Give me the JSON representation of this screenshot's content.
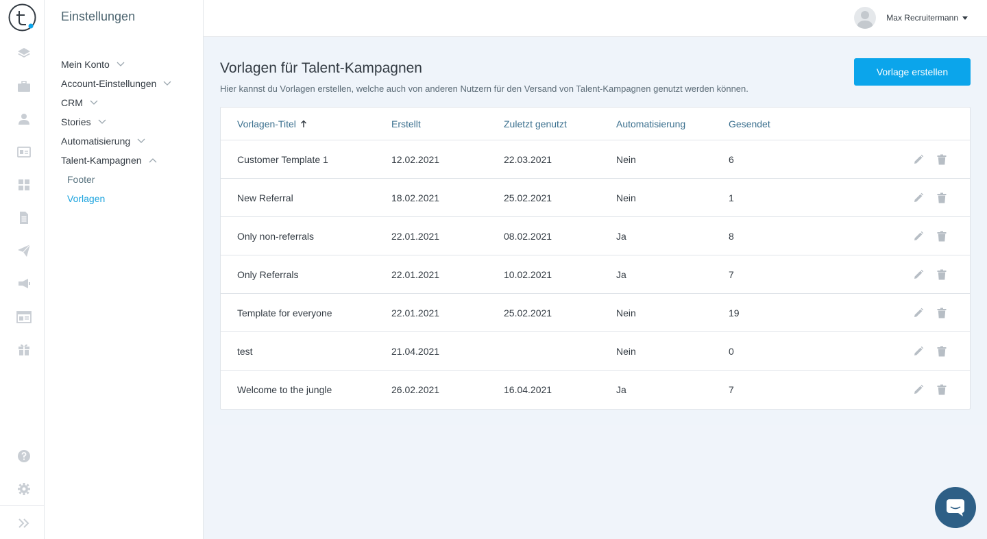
{
  "rail": {
    "icons": [
      "logo-icon",
      "layers-icon",
      "briefcase-icon",
      "person-icon",
      "id-card-icon",
      "grid-icon",
      "document-icon",
      "paper-plane-icon",
      "megaphone-icon",
      "layout-icon",
      "gift-icon",
      "help-icon",
      "gear-icon",
      "expand-icon"
    ]
  },
  "settings": {
    "title": "Einstellungen",
    "menu": [
      {
        "label": "Mein Konto",
        "expanded": false
      },
      {
        "label": "Account-Einstellungen",
        "expanded": false
      },
      {
        "label": "CRM",
        "expanded": false
      },
      {
        "label": "Stories",
        "expanded": false
      },
      {
        "label": "Automatisierung",
        "expanded": false
      },
      {
        "label": "Talent-Kampagnen",
        "expanded": true
      }
    ],
    "submenu": [
      {
        "label": "Footer",
        "active": false
      },
      {
        "label": "Vorlagen",
        "active": true
      }
    ]
  },
  "topbar": {
    "user_name": "Max Recruitermann"
  },
  "page": {
    "title": "Vorlagen für Talent-Kampagnen",
    "subtitle": "Hier kannst du Vorlagen erstellen, welche auch von anderen Nutzern für den Versand von Talent-Kampagnen genutzt werden können.",
    "create_button": "Vorlage erstellen"
  },
  "table": {
    "columns": [
      "Vorlagen-Titel",
      "Erstellt",
      "Zuletzt genutzt",
      "Automatisierung",
      "Gesendet"
    ],
    "sort_column": "Vorlagen-Titel",
    "sort_direction": "asc",
    "rows": [
      {
        "title": "Customer Template 1",
        "created": "12.02.2021",
        "last_used": "22.03.2021",
        "automation": "Nein",
        "sent": "6"
      },
      {
        "title": "New Referral",
        "created": "18.02.2021",
        "last_used": "25.02.2021",
        "automation": "Nein",
        "sent": "1"
      },
      {
        "title": "Only non-referrals",
        "created": "22.01.2021",
        "last_used": "08.02.2021",
        "automation": "Ja",
        "sent": "8"
      },
      {
        "title": "Only Referrals",
        "created": "22.01.2021",
        "last_used": "10.02.2021",
        "automation": "Ja",
        "sent": "7"
      },
      {
        "title": "Template for everyone",
        "created": "22.01.2021",
        "last_used": "25.02.2021",
        "automation": "Nein",
        "sent": "19"
      },
      {
        "title": "test",
        "created": "21.04.2021",
        "last_used": "",
        "automation": "Nein",
        "sent": "0"
      },
      {
        "title": "Welcome to the jungle",
        "created": "26.02.2021",
        "last_used": "16.04.2021",
        "automation": "Ja",
        "sent": "7"
      }
    ]
  },
  "colors": {
    "accent": "#0ba5eb",
    "active_link": "#1ba3de",
    "header_link": "#3a6f8e",
    "chat_bubble": "#2e5f86"
  }
}
